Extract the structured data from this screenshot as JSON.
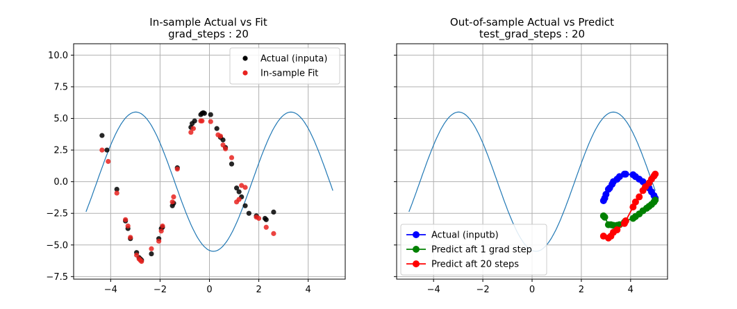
{
  "chart_data": [
    {
      "type": "scatter",
      "title": "In-sample Actual vs Fit",
      "subtitle": "grad_steps : 20",
      "xlim": [
        -5.5,
        5.5
      ],
      "ylim": [
        -7.7,
        10.9
      ],
      "xticks": [
        -4,
        -2,
        0,
        2,
        4
      ],
      "yticks": [
        -7.5,
        -5.0,
        -2.5,
        0.0,
        2.5,
        5.0,
        7.5,
        10.0
      ],
      "grid": true,
      "legend": "top-right",
      "curve": {
        "name": "sinusoid",
        "amplitude": 5.5,
        "phase": 1.73,
        "x_range": [
          -5,
          5
        ],
        "color": "#1f77b4"
      },
      "series": [
        {
          "name": "Actual (inputa)",
          "color": "#000000",
          "x": [
            -4.35,
            -4.15,
            -3.75,
            -3.4,
            -3.3,
            -3.2,
            -2.95,
            -2.85,
            -2.8,
            -2.75,
            -2.35,
            -2.05,
            -1.95,
            -1.9,
            -1.5,
            -1.45,
            -1.3,
            -0.75,
            -0.7,
            -0.6,
            -0.35,
            -0.3,
            -0.25,
            -0.2,
            0.05,
            0.3,
            0.45,
            0.55,
            0.65,
            0.9,
            1.1,
            1.2,
            1.3,
            1.45,
            1.6,
            1.9,
            2.25,
            2.3,
            2.6
          ],
          "y": [
            3.65,
            2.5,
            -0.6,
            -3.1,
            -3.7,
            -4.5,
            -5.6,
            -6.0,
            -6.1,
            -6.2,
            -5.7,
            -4.5,
            -3.7,
            -3.6,
            -1.9,
            -1.7,
            1.1,
            4.3,
            4.6,
            4.8,
            5.3,
            5.4,
            5.45,
            5.4,
            5.3,
            4.2,
            3.5,
            3.3,
            2.7,
            1.4,
            -0.5,
            -0.8,
            -1.2,
            -1.9,
            -2.5,
            -2.7,
            -2.9,
            -3.0,
            -2.4
          ]
        },
        {
          "name": "In-sample Fit",
          "color": "#e8221f",
          "x": [
            -4.35,
            -4.1,
            -3.75,
            -3.4,
            -3.3,
            -3.2,
            -2.95,
            -2.85,
            -2.8,
            -2.75,
            -2.35,
            -2.05,
            -1.95,
            -1.9,
            -1.5,
            -1.45,
            -1.3,
            -0.75,
            -0.65,
            -0.35,
            -0.3,
            0.05,
            0.35,
            0.45,
            0.55,
            0.65,
            0.9,
            1.1,
            1.2,
            1.3,
            1.45,
            1.9,
            2.0,
            2.3,
            2.6
          ],
          "y": [
            2.5,
            1.6,
            -0.9,
            -3.0,
            -3.5,
            -4.4,
            -5.8,
            -6.1,
            -6.2,
            -6.3,
            -5.3,
            -4.7,
            -3.9,
            -3.5,
            -1.6,
            -1.2,
            1.0,
            3.9,
            4.2,
            4.8,
            4.8,
            4.75,
            3.7,
            3.6,
            2.9,
            2.6,
            1.9,
            -1.6,
            -1.4,
            -0.3,
            -0.45,
            -2.8,
            -2.9,
            -3.6,
            -4.1
          ]
        }
      ]
    },
    {
      "type": "line",
      "title": "Out-of-sample Actual vs Predict",
      "subtitle": "test_grad_steps : 20",
      "xlim": [
        -5.5,
        5.5
      ],
      "ylim": [
        -7.7,
        10.9
      ],
      "xticks": [
        -4,
        -2,
        0,
        2,
        4
      ],
      "grid": true,
      "legend": "bottom-left",
      "curve": {
        "name": "sinusoid",
        "amplitude": 5.5,
        "phase": 1.73,
        "x_range": [
          -5,
          5
        ],
        "color": "#1f77b4"
      },
      "series": [
        {
          "name": "Actual (inputb)",
          "color": "#0000ff",
          "x": [
            2.9,
            2.95,
            3.0,
            3.1,
            3.15,
            3.25,
            3.3,
            3.45,
            3.55,
            3.75,
            3.8,
            4.1,
            4.2,
            4.35,
            4.5,
            4.65,
            4.75,
            4.85,
            4.95,
            5.0
          ],
          "y": [
            -1.5,
            -1.3,
            -1.0,
            -0.6,
            -0.5,
            -0.2,
            0.0,
            0.2,
            0.4,
            0.6,
            0.6,
            0.55,
            0.4,
            0.2,
            0.0,
            -0.3,
            -0.5,
            -0.8,
            -1.1,
            -1.3
          ]
        },
        {
          "name": "Predict aft 1 grad step",
          "color": "#008000",
          "x": [
            2.9,
            2.95,
            3.1,
            3.2,
            3.3,
            3.45,
            3.55,
            3.75,
            3.8,
            4.1,
            4.2,
            4.35,
            4.5,
            4.65,
            4.75,
            4.85,
            4.95,
            5.0
          ],
          "y": [
            -2.7,
            -2.8,
            -3.4,
            -3.4,
            -3.45,
            -3.45,
            -3.4,
            -3.2,
            -3.1,
            -2.9,
            -2.75,
            -2.55,
            -2.3,
            -2.1,
            -1.95,
            -1.8,
            -1.6,
            -1.45
          ]
        },
        {
          "name": "Predict aft 20 steps",
          "color": "#ff0000",
          "x": [
            2.9,
            3.1,
            3.2,
            3.3,
            3.45,
            3.75,
            3.8,
            4.1,
            4.2,
            4.35,
            4.5,
            4.6,
            4.75,
            4.85,
            4.95,
            5.0
          ],
          "y": [
            -4.3,
            -4.45,
            -4.3,
            -4.0,
            -3.8,
            -3.3,
            -3.1,
            -2.0,
            -1.6,
            -1.2,
            -0.7,
            -0.4,
            -0.1,
            0.2,
            0.45,
            0.6
          ]
        }
      ]
    }
  ]
}
